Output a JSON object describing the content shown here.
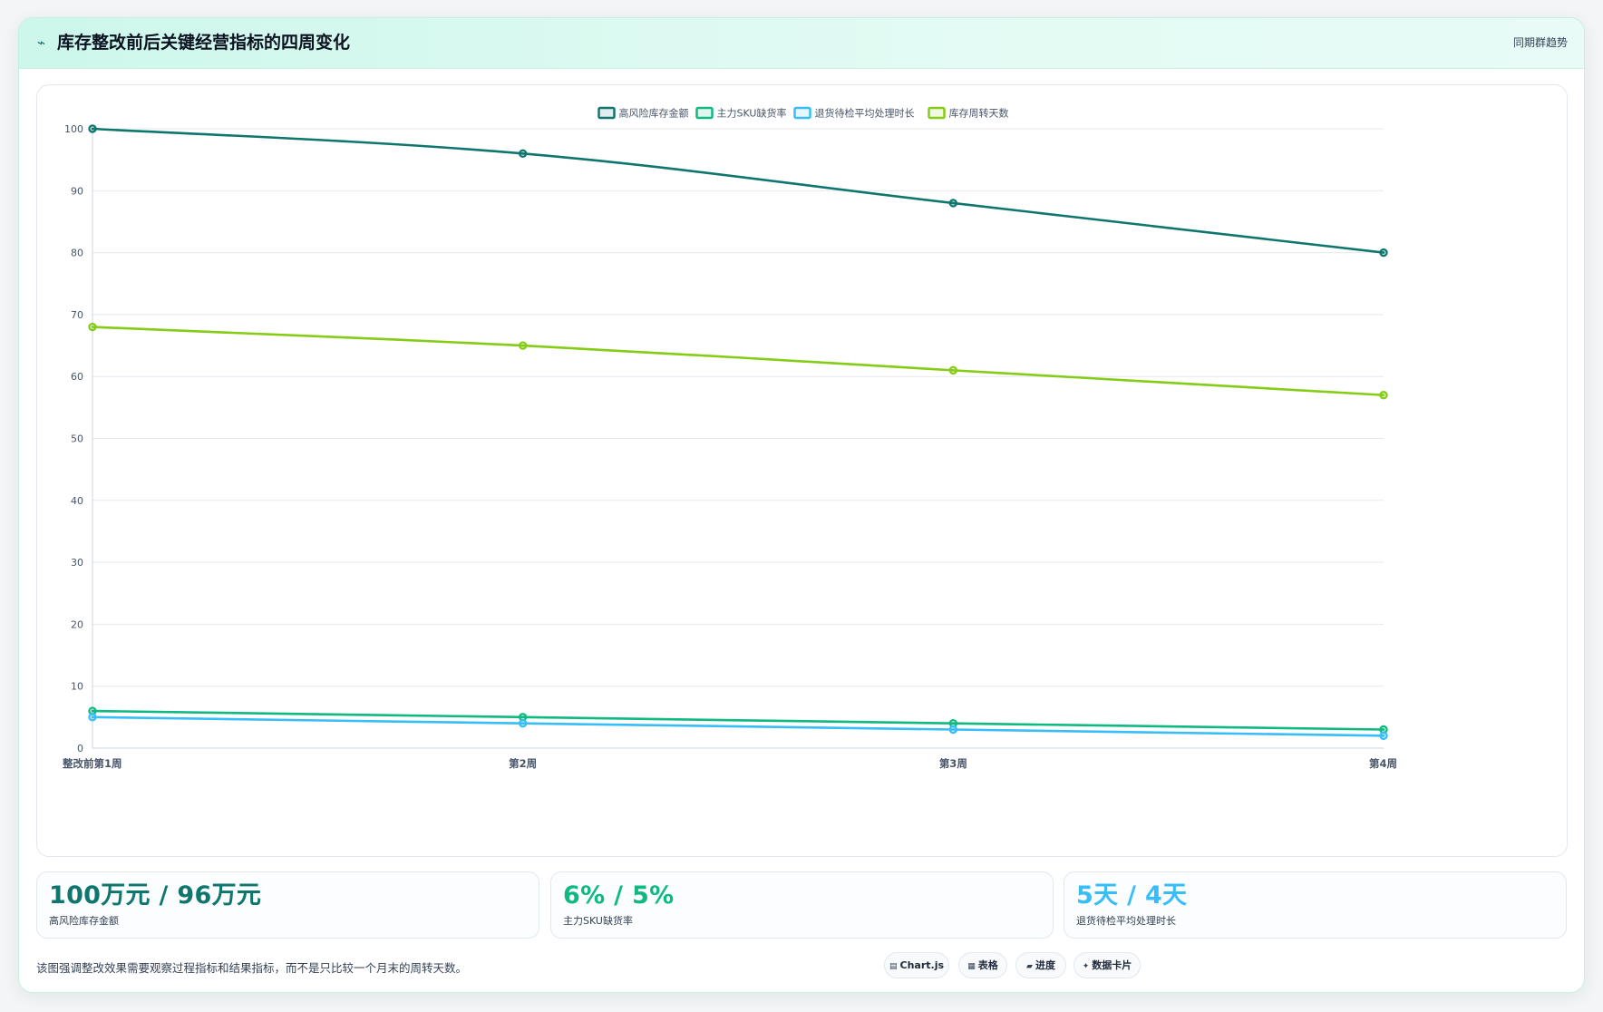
{
  "header": {
    "icon": "pulse-icon",
    "title": "库存整改前后关键经营指标的四周变化",
    "tag": "同期群趋势"
  },
  "chart_data": {
    "type": "line",
    "categories": [
      "整改前第1周",
      "第2周",
      "第3周",
      "第4周"
    ],
    "ylim": [
      0,
      100
    ],
    "yticks": [
      0,
      10,
      20,
      30,
      40,
      50,
      60,
      70,
      80,
      90,
      100
    ],
    "grid": true,
    "legend_position": "top-center",
    "series": [
      {
        "name": "高风险库存金额",
        "color": "#0f766e",
        "values": [
          100,
          96,
          88,
          80
        ]
      },
      {
        "name": "主力SKU缺货率",
        "color": "#10b981",
        "values": [
          6,
          5,
          4,
          3
        ]
      },
      {
        "name": "退货待检平均处理时长",
        "color": "#38bdf8",
        "values": [
          5,
          4,
          3,
          2
        ]
      },
      {
        "name": "库存周转天数",
        "color": "#84cc16",
        "values": [
          68,
          65,
          61,
          57
        ]
      }
    ]
  },
  "kpis": [
    {
      "value": "100万元 / 96万元",
      "label": "高风险库存金额",
      "color": "#0f766e"
    },
    {
      "value": "6% / 5%",
      "label": "主力SKU缺货率",
      "color": "#10b981"
    },
    {
      "value": "5天 / 4天",
      "label": "退货待检平均处理时长",
      "color": "#38bdf8"
    }
  ],
  "footnote": "该图强调整改效果需要观察过程指标和结果指标，而不是只比较一个月末的周转天数。",
  "chips": [
    {
      "icon": "▤",
      "label": "Chart.js"
    },
    {
      "icon": "▦",
      "label": "表格"
    },
    {
      "icon": "▰",
      "label": "进度"
    },
    {
      "icon": "✦",
      "label": "数据卡片"
    }
  ]
}
